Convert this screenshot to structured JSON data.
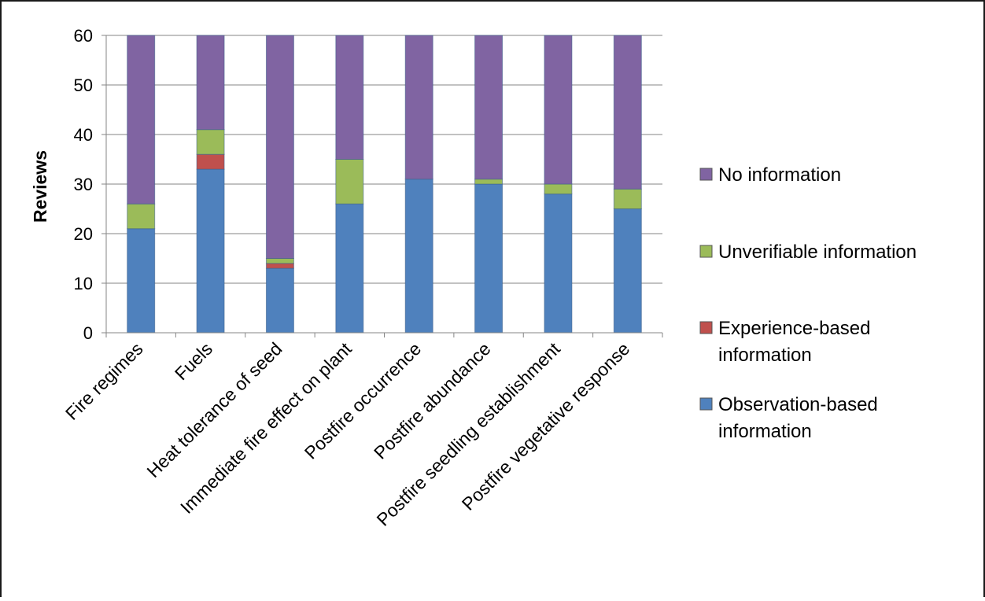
{
  "chart_data": {
    "type": "bar",
    "stacked": true,
    "title": "",
    "xlabel": "",
    "ylabel": "Reviews",
    "ylim": [
      0,
      60
    ],
    "yticks": [
      0,
      10,
      20,
      30,
      40,
      50,
      60
    ],
    "grid": true,
    "legend_position": "right",
    "categories": [
      "Fire regimes",
      "Fuels",
      "Heat tolerance of seed",
      "Immediate fire effect on plant",
      "Postfire occurrence",
      "Postfire abundance",
      "Postfire seedling establishment",
      "Postfire vegetative response"
    ],
    "series": [
      {
        "name": "Observation-based information",
        "color": "#4f81bd",
        "values": [
          21,
          33,
          13,
          26,
          31,
          30,
          28,
          25
        ]
      },
      {
        "name": "Experience-based information",
        "color": "#c0504d",
        "values": [
          0,
          3,
          1,
          0,
          0,
          0,
          0,
          0
        ]
      },
      {
        "name": "Unverifiable information",
        "color": "#9bbb59",
        "values": [
          5,
          5,
          1,
          9,
          0,
          1,
          2,
          4
        ]
      },
      {
        "name": "No information",
        "color": "#8064a2",
        "values": [
          35,
          20,
          46,
          26,
          30,
          30,
          31,
          32
        ]
      }
    ],
    "legend": [
      {
        "lines": [
          "No information"
        ],
        "color": "#8064a2"
      },
      {
        "lines": [
          "Unverifiable information"
        ],
        "color": "#9bbb59"
      },
      {
        "lines": [
          "Experience-based",
          "information"
        ],
        "color": "#c0504d"
      },
      {
        "lines": [
          "Observation-based",
          "information"
        ],
        "color": "#4f81bd"
      }
    ]
  }
}
